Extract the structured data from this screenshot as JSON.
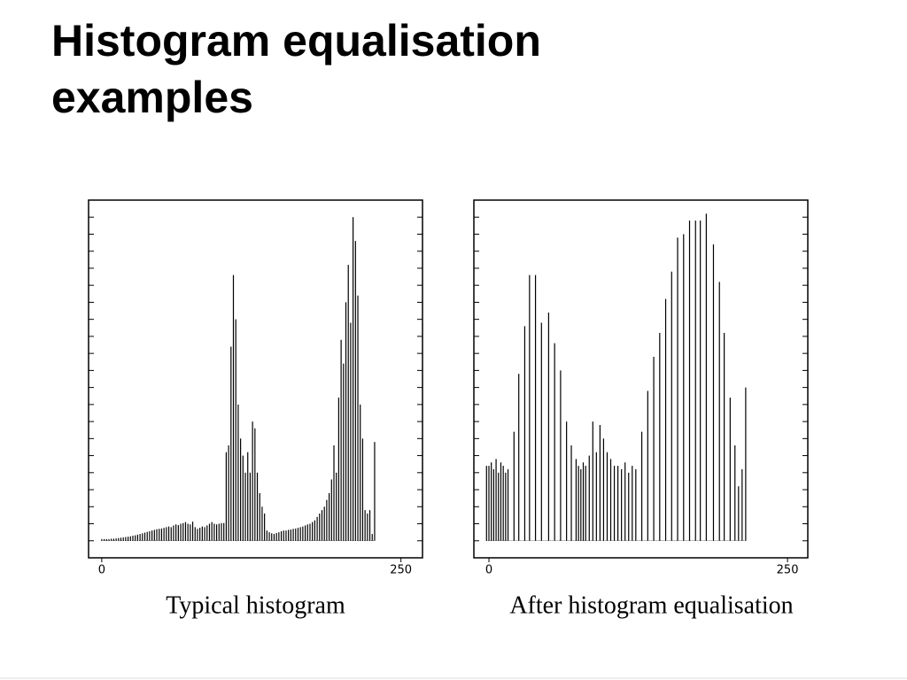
{
  "title": "Histogram equalisation examples",
  "chart_data": [
    {
      "type": "bar",
      "title": "Typical histogram",
      "color": "#000000",
      "x": [
        0,
        2,
        4,
        6,
        8,
        10,
        12,
        14,
        16,
        18,
        20,
        22,
        24,
        26,
        28,
        30,
        32,
        34,
        36,
        38,
        40,
        42,
        44,
        46,
        48,
        50,
        52,
        54,
        56,
        58,
        60,
        62,
        64,
        66,
        68,
        70,
        72,
        74,
        76,
        78,
        80,
        82,
        84,
        86,
        88,
        90,
        92,
        94,
        96,
        98,
        100,
        102,
        104,
        106,
        108,
        110,
        112,
        114,
        116,
        118,
        120,
        122,
        124,
        126,
        128,
        130,
        132,
        134,
        136,
        138,
        140,
        142,
        144,
        146,
        148,
        150,
        152,
        154,
        156,
        158,
        160,
        162,
        164,
        166,
        168,
        170,
        172,
        174,
        176,
        178,
        180,
        182,
        184,
        186,
        188,
        190,
        192,
        194,
        196,
        198,
        200,
        202,
        204,
        206,
        208,
        210,
        212,
        214,
        216,
        218,
        220,
        222,
        224,
        226,
        228
      ],
      "values": [
        0.5,
        0.5,
        0.5,
        0.5,
        0.6,
        0.6,
        0.7,
        0.8,
        0.9,
        1.0,
        1.1,
        1.2,
        1.3,
        1.5,
        1.6,
        1.8,
        2.0,
        2.2,
        2.4,
        2.6,
        2.8,
        3.0,
        3.2,
        3.4,
        3.5,
        3.6,
        3.8,
        4.0,
        4.2,
        4.0,
        4.5,
        4.8,
        4.6,
        5.0,
        5.2,
        5.5,
        5.0,
        4.8,
        5.6,
        4.0,
        3.5,
        3.8,
        4.2,
        4.0,
        4.5,
        5.0,
        5.5,
        5.0,
        4.8,
        5.0,
        5.2,
        5.2,
        26,
        28,
        57,
        78,
        65,
        40,
        30,
        25,
        20,
        26,
        20,
        35,
        33,
        20,
        14,
        10,
        8,
        3,
        2.5,
        2.2,
        2.0,
        2.3,
        2.5,
        2.8,
        3.0,
        3.0,
        3.2,
        3.3,
        3.5,
        3.6,
        3.8,
        4.0,
        4.2,
        4.5,
        4.8,
        5.0,
        5.5,
        6.0,
        7.0,
        8.0,
        9.0,
        10.0,
        12.0,
        14.0,
        18,
        28,
        20,
        42,
        59,
        52,
        70,
        81,
        64,
        95,
        88,
        72,
        40,
        30,
        9,
        8,
        9,
        2,
        29
      ],
      "xlim": [
        -11,
        268
      ],
      "xticks": [
        0,
        250
      ],
      "ylim": [
        -5,
        100
      ],
      "yticks": [
        0,
        5,
        10,
        15,
        20,
        25,
        30,
        35,
        40,
        45,
        50,
        55,
        60,
        65,
        70,
        75,
        80,
        85,
        90,
        95
      ]
    },
    {
      "type": "bar",
      "title": "After histogram equalisation",
      "color": "#000000",
      "x": [
        -2,
        0,
        2,
        4,
        6,
        8,
        10,
        12,
        14,
        16,
        21,
        25,
        30,
        34,
        39,
        44,
        50,
        55,
        60,
        65,
        69,
        73,
        75,
        77,
        79,
        81,
        84,
        87,
        90,
        93,
        96,
        99,
        102,
        105,
        108,
        111,
        114,
        117,
        120,
        123,
        128,
        133,
        138,
        143,
        148,
        153,
        158,
        163,
        168,
        173,
        177,
        182,
        188,
        193,
        197,
        202,
        206,
        209,
        212,
        215
      ],
      "values": [
        22,
        22,
        23,
        21,
        24,
        20,
        23,
        22,
        20,
        21,
        32,
        49,
        63,
        78,
        78,
        64,
        67,
        58,
        50,
        35,
        28,
        24,
        22,
        21,
        23,
        22,
        25,
        35,
        26,
        34,
        30,
        26,
        24,
        22,
        22,
        21,
        23,
        20,
        22,
        21,
        32,
        44,
        54,
        61,
        71,
        79,
        89,
        90,
        94,
        94,
        94,
        96,
        87,
        76,
        61,
        42,
        28,
        16,
        21,
        45
      ],
      "xlim": [
        -12.6,
        267
      ],
      "xticks": [
        0,
        250
      ],
      "ylim": [
        -5,
        100
      ],
      "yticks": [
        0,
        5,
        10,
        15,
        20,
        25,
        30,
        35,
        40,
        45,
        50,
        55,
        60,
        65,
        70,
        75,
        80,
        85,
        90,
        95
      ]
    }
  ]
}
